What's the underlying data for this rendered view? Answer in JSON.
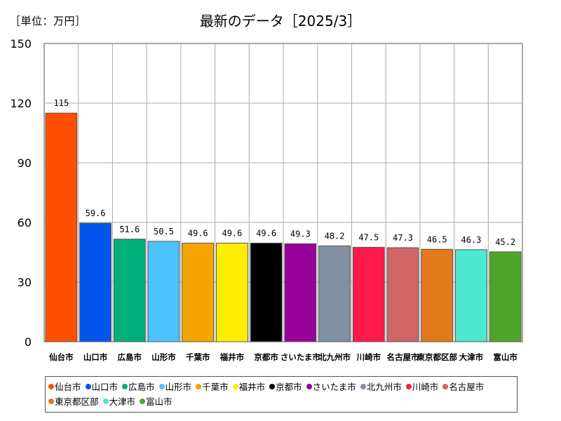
{
  "chart_data": {
    "type": "bar",
    "title": "最新のデータ［2025/3］",
    "unit_label": "［単位：万円］",
    "ylim": [
      0,
      150
    ],
    "yticks": [
      0,
      30,
      60,
      90,
      120,
      150
    ],
    "grid": true,
    "legend_position": "bottom",
    "categories": [
      "仙台市",
      "山口市",
      "広島市",
      "山形市",
      "千葉市",
      "福井市",
      "京都市",
      "さいたま市",
      "北九州市",
      "川崎市",
      "名古屋市",
      "東京都区部",
      "大津市",
      "富山市"
    ],
    "values": [
      115,
      59.6,
      51.6,
      50.5,
      49.6,
      49.6,
      49.6,
      49.3,
      48.2,
      47.5,
      47.3,
      46.5,
      46.3,
      45.2
    ],
    "value_labels": [
      "115",
      "59.6",
      "51.6",
      "50.5",
      "49.6",
      "49.6",
      "49.6",
      "49.3",
      "48.2",
      "47.5",
      "47.3",
      "46.5",
      "46.3",
      "45.2"
    ],
    "colors": [
      "#ff4f00",
      "#0055ee",
      "#00b07a",
      "#4cc3ff",
      "#f5a500",
      "#ffee00",
      "#000000",
      "#990099",
      "#8090a0",
      "#ff1a4a",
      "#d06666",
      "#e07a1a",
      "#4ee8d0",
      "#4ea52a"
    ]
  }
}
